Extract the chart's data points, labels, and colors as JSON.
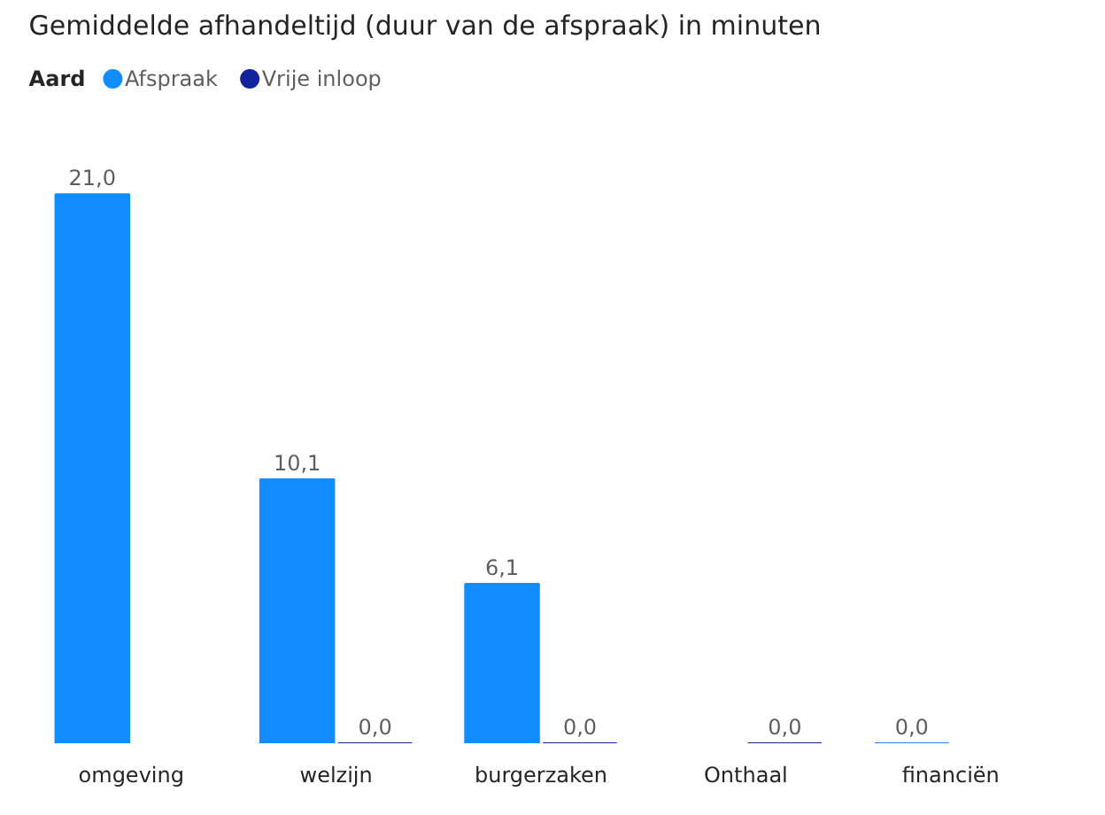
{
  "chart_data": {
    "type": "bar",
    "title": "Gemiddelde afhandeltijd (duur van de afspraak) in minuten",
    "legend_title": "Aard",
    "legend": "top left",
    "categories": [
      "omgeving",
      "welzijn",
      "burgerzaken",
      "Onthaal",
      "financiën"
    ],
    "series": [
      {
        "name": "Afspraak",
        "color": "#118dff",
        "values": [
          21.0,
          10.1,
          6.1,
          null,
          0.0
        ],
        "value_labels": [
          "21,0",
          "10,1",
          "6,1",
          null,
          "0,0"
        ]
      },
      {
        "name": "Vrije inloop",
        "color": "#12239e",
        "values": [
          null,
          0.0,
          0.0,
          0.0,
          null
        ],
        "value_labels": [
          null,
          "0,0",
          "0,0",
          "0,0",
          null
        ]
      }
    ]
  }
}
